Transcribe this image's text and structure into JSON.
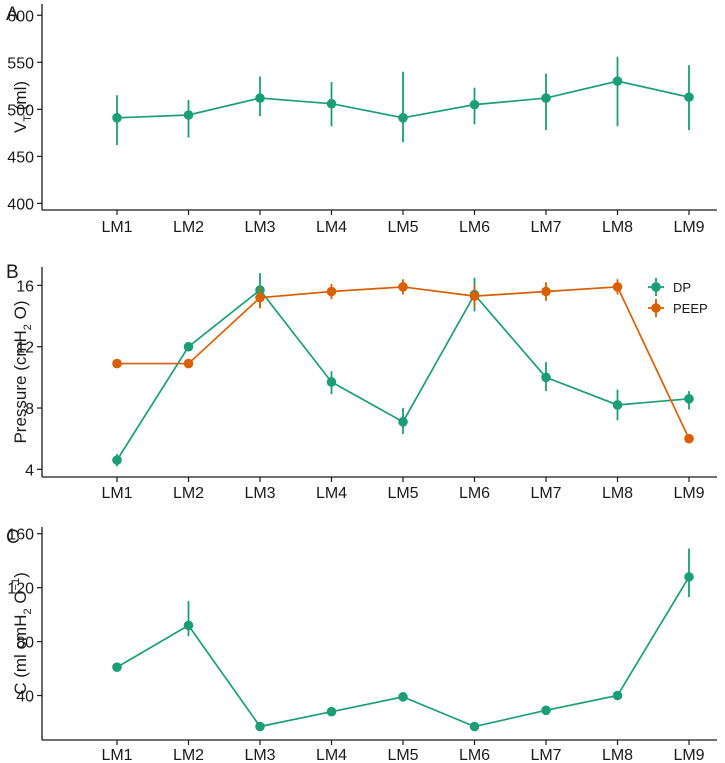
{
  "colors": {
    "green": "#1b9e77",
    "orange": "#d95f02",
    "axis": "#1a1a1a"
  },
  "chart_data": [
    {
      "type": "line",
      "panel_label": "A",
      "ylabel": "V",
      "ylabel_subscript": "T",
      "ylabel_tail": " (ml)",
      "categories": [
        "LM1",
        "LM2",
        "LM3",
        "LM4",
        "LM5",
        "LM6",
        "LM7",
        "LM8",
        "LM9"
      ],
      "ylim": [
        393,
        612
      ],
      "yticks": [
        400,
        450,
        500,
        550,
        600
      ],
      "series": [
        {
          "name": "",
          "color": "#1b9e77",
          "values": [
            491,
            494,
            512,
            506,
            491,
            505,
            512,
            530,
            513
          ],
          "err_low": [
            462,
            470,
            493,
            482,
            465,
            484,
            478,
            482,
            478
          ],
          "err_high": [
            515,
            510,
            535,
            529,
            540,
            523,
            538,
            556,
            547
          ]
        }
      ]
    },
    {
      "type": "line",
      "panel_label": "B",
      "ylabel": "Pressure (cmH",
      "ylabel_subscript": "2",
      "ylabel_tail": " O)",
      "categories": [
        "LM1",
        "LM2",
        "LM3",
        "LM4",
        "LM5",
        "LM6",
        "LM7",
        "LM8",
        "LM9"
      ],
      "ylim": [
        3.5,
        17.2
      ],
      "yticks": [
        4,
        8,
        12,
        16
      ],
      "legend": [
        "DP",
        "PEEP"
      ],
      "legend_position": "top-right",
      "series": [
        {
          "name": "DP",
          "color": "#1b9e77",
          "values": [
            4.6,
            12.0,
            15.7,
            9.7,
            7.1,
            15.4,
            10.0,
            8.2,
            8.6
          ],
          "err_low": [
            4.2,
            11.7,
            14.6,
            8.9,
            6.3,
            14.3,
            9.1,
            7.2,
            7.9
          ],
          "err_high": [
            5.0,
            12.3,
            16.8,
            10.4,
            8.0,
            16.5,
            11.0,
            9.2,
            9.1
          ]
        },
        {
          "name": "PEEP",
          "color": "#d95f02",
          "values": [
            10.9,
            10.9,
            15.2,
            15.6,
            15.9,
            15.3,
            15.6,
            15.9,
            6.0
          ],
          "err_low": [
            10.9,
            10.9,
            14.5,
            15.1,
            15.4,
            14.6,
            15.0,
            15.4,
            5.8
          ],
          "err_high": [
            10.9,
            10.9,
            15.9,
            16.1,
            16.4,
            16.0,
            16.2,
            16.4,
            6.3
          ]
        }
      ]
    },
    {
      "type": "line",
      "panel_label": "C",
      "ylabel": "C (ml cmH",
      "ylabel_subscript": "2",
      "ylabel_tail": " O",
      "ylabel_superscript": "−1",
      "ylabel_end": ")",
      "categories": [
        "LM1",
        "LM2",
        "LM3",
        "LM4",
        "LM5",
        "LM6",
        "LM7",
        "LM8",
        "LM9"
      ],
      "ylim": [
        7,
        165
      ],
      "yticks": [
        40,
        80,
        120,
        160
      ],
      "series": [
        {
          "name": "",
          "color": "#1b9e77",
          "values": [
            61,
            92,
            17,
            28,
            39,
            17,
            29,
            40,
            128
          ],
          "err_low": [
            61,
            84,
            17,
            28,
            39,
            17,
            29,
            40,
            113
          ],
          "err_high": [
            61,
            110,
            17,
            28,
            39,
            17,
            29,
            40,
            149
          ]
        }
      ]
    }
  ]
}
